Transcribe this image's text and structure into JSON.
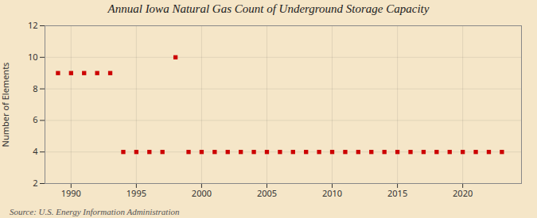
{
  "chart_data": {
    "type": "scatter",
    "title": "Annual Iowa Natural Gas Count of Underground Storage Capacity",
    "ylabel": "Number of Elements",
    "source": "Source: U.S. Energy Information Administration",
    "x": [
      1989,
      1990,
      1991,
      1992,
      1993,
      1994,
      1995,
      1996,
      1997,
      1998,
      1999,
      2000,
      2001,
      2002,
      2003,
      2004,
      2005,
      2006,
      2007,
      2008,
      2009,
      2010,
      2011,
      2012,
      2013,
      2014,
      2015,
      2016,
      2017,
      2018,
      2019,
      2020,
      2021,
      2022,
      2023
    ],
    "values": [
      9,
      9,
      9,
      9,
      9,
      4,
      4,
      4,
      4,
      10,
      4,
      4,
      4,
      4,
      4,
      4,
      4,
      4,
      4,
      4,
      4,
      4,
      4,
      4,
      4,
      4,
      4,
      4,
      4,
      4,
      4,
      4,
      4,
      4,
      4
    ],
    "color": "#cc0000",
    "marker": "square",
    "xlim": [
      1988.0,
      2024.5
    ],
    "ylim": [
      2,
      12
    ],
    "xticks": [
      1990,
      1995,
      2000,
      2005,
      2010,
      2015,
      2020
    ],
    "yticks": [
      2,
      4,
      6,
      8,
      10,
      12
    ],
    "grid": true
  }
}
